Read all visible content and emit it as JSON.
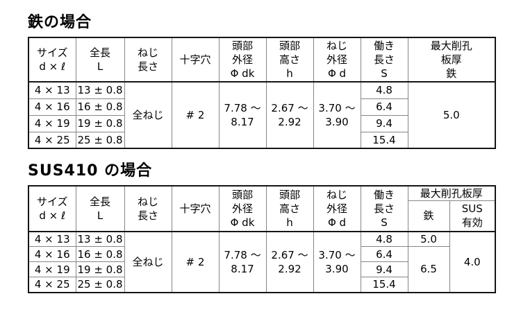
{
  "t1": {
    "title": "鉄の場合",
    "h": {
      "size1": "サイズ",
      "size2": "d × ℓ",
      "len1": "全長",
      "len2": "L",
      "tl1": "ねじ",
      "tl2": "長さ",
      "recess": "十字穴",
      "hd1": "頭部",
      "hd2": "外径",
      "hd3": "Φ dk",
      "hh1": "頭部",
      "hh2": "高さ",
      "hh3": "h",
      "td1": "ねじ",
      "td2": "外径",
      "td3": "Φ d",
      "wl1": "働き",
      "wl2": "長さ",
      "wl3": "S",
      "md1": "最大削孔",
      "md2": "板厚",
      "md3": "鉄"
    },
    "m": {
      "thread": "全ねじ",
      "recess": "# 2",
      "hd1": "7.78 ～",
      "hd2": "8.17",
      "hh1": "2.67 ～",
      "hh2": "2.92",
      "td1": "3.70 ～",
      "td2": "3.90",
      "maxdrill_iron": "5.0"
    },
    "rows": [
      {
        "size": "4 × 13",
        "len": "13 ± 0.8",
        "s": "4.8"
      },
      {
        "size": "4 × 16",
        "len": "16 ± 0.8",
        "s": "6.4"
      },
      {
        "size": "4 × 19",
        "len": "19 ± 0.8",
        "s": "9.4"
      },
      {
        "size": "4 × 25",
        "len": "25 ± 0.8",
        "s": "15.4"
      }
    ]
  },
  "t2": {
    "title": "SUS410 の場合",
    "h": {
      "size1": "サイズ",
      "size2": "d × ℓ",
      "len1": "全長",
      "len2": "L",
      "tl1": "ねじ",
      "tl2": "長さ",
      "recess": "十字穴",
      "hd1": "頭部",
      "hd2": "外径",
      "hd3": "Φ dk",
      "hh1": "頭部",
      "hh2": "高さ",
      "hh3": "h",
      "td1": "ねじ",
      "td2": "外径",
      "td3": "Φ d",
      "wl1": "働き",
      "wl2": "長さ",
      "wl3": "S",
      "md": "最大削孔板厚",
      "md_fe": "鉄",
      "md_sus1": "SUS",
      "md_sus2": "有効"
    },
    "m": {
      "thread": "全ねじ",
      "recess": "# 2",
      "hd1": "7.78 ～",
      "hd2": "8.17",
      "hh1": "2.67 ～",
      "hh2": "2.92",
      "td1": "3.70 ～",
      "td2": "3.90",
      "fe_row1": "5.0",
      "fe_rest": "6.5",
      "sus_all": "4.0"
    },
    "rows": [
      {
        "size": "4 × 13",
        "len": "13 ± 0.8",
        "s": "4.8"
      },
      {
        "size": "4 × 16",
        "len": "16 ± 0.8",
        "s": "6.4"
      },
      {
        "size": "4 × 19",
        "len": "19 ± 0.8",
        "s": "9.4"
      },
      {
        "size": "4 × 25",
        "len": "25 ± 0.8",
        "s": "15.4"
      }
    ]
  }
}
